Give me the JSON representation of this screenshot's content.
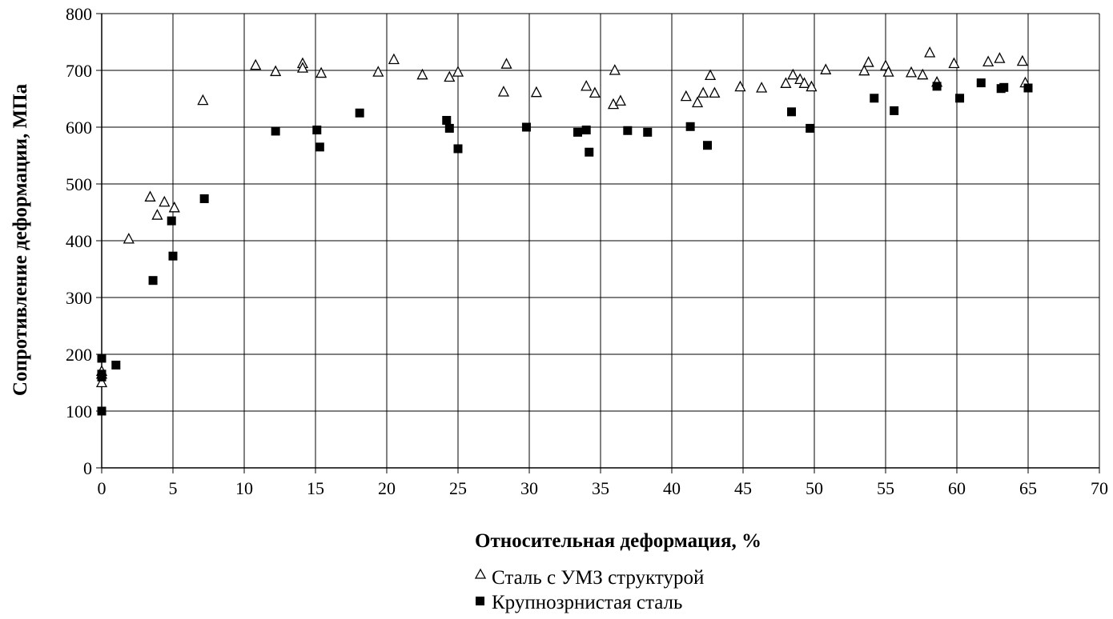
{
  "chart_data": {
    "type": "scatter",
    "title": "",
    "xlabel": "Относительная  деформация, %",
    "ylabel": "Сопротивление деформации, МПа",
    "xlim": [
      0,
      70
    ],
    "ylim": [
      0,
      800
    ],
    "xticks": [
      0,
      5,
      10,
      15,
      20,
      25,
      30,
      35,
      40,
      45,
      50,
      55,
      60,
      65,
      70
    ],
    "yticks": [
      0,
      100,
      200,
      300,
      400,
      500,
      600,
      700,
      800
    ],
    "grid": true,
    "legend_position": "bottom-center",
    "series": [
      {
        "name": "Сталь с УМЗ структурой",
        "marker": "open-triangle",
        "color": "#000000",
        "points": [
          [
            0,
            150
          ],
          [
            0,
            165
          ],
          [
            0,
            170
          ],
          [
            1.9,
            403
          ],
          [
            3.4,
            477
          ],
          [
            3.9,
            445
          ],
          [
            4.4,
            468
          ],
          [
            5.1,
            458
          ],
          [
            7.1,
            647
          ],
          [
            10.8,
            709
          ],
          [
            12.2,
            698
          ],
          [
            14.1,
            712
          ],
          [
            14.1,
            704
          ],
          [
            15.4,
            695
          ],
          [
            19.4,
            697
          ],
          [
            20.5,
            719
          ],
          [
            22.5,
            692
          ],
          [
            24.4,
            688
          ],
          [
            25,
            697
          ],
          [
            28.2,
            662
          ],
          [
            28.4,
            711
          ],
          [
            30.5,
            661
          ],
          [
            34,
            672
          ],
          [
            34.6,
            660
          ],
          [
            35.9,
            640
          ],
          [
            36,
            700
          ],
          [
            36.4,
            646
          ],
          [
            41,
            654
          ],
          [
            41.8,
            643
          ],
          [
            42.2,
            660
          ],
          [
            42.7,
            691
          ],
          [
            43,
            660
          ],
          [
            44.8,
            671
          ],
          [
            46.3,
            669
          ],
          [
            48,
            677
          ],
          [
            48.5,
            692
          ],
          [
            49,
            684
          ],
          [
            49.3,
            677
          ],
          [
            49.8,
            671
          ],
          [
            50.8,
            701
          ],
          [
            53.5,
            699
          ],
          [
            53.8,
            714
          ],
          [
            55,
            708
          ],
          [
            55.2,
            697
          ],
          [
            56.8,
            696
          ],
          [
            57.6,
            692
          ],
          [
            58.1,
            731
          ],
          [
            58.6,
            679
          ],
          [
            59.8,
            712
          ],
          [
            62.2,
            715
          ],
          [
            63,
            721
          ],
          [
            64.6,
            716
          ],
          [
            64.8,
            678
          ]
        ]
      },
      {
        "name": "Крупнозрнистая сталь",
        "marker": "filled-square",
        "color": "#000000",
        "points": [
          [
            0,
            100
          ],
          [
            0,
            160
          ],
          [
            0,
            165
          ],
          [
            0,
            193
          ],
          [
            1,
            181
          ],
          [
            3.6,
            330
          ],
          [
            4.9,
            435
          ],
          [
            5,
            373
          ],
          [
            7.2,
            474
          ],
          [
            12.2,
            593
          ],
          [
            15.1,
            595
          ],
          [
            15.3,
            565
          ],
          [
            18.1,
            625
          ],
          [
            24.2,
            612
          ],
          [
            24.4,
            598
          ],
          [
            25,
            562
          ],
          [
            29.8,
            600
          ],
          [
            33.4,
            591
          ],
          [
            34,
            595
          ],
          [
            34.2,
            556
          ],
          [
            36.9,
            594
          ],
          [
            38.3,
            591
          ],
          [
            41.3,
            601
          ],
          [
            42.5,
            568
          ],
          [
            48.4,
            627
          ],
          [
            49.7,
            598
          ],
          [
            54.2,
            651
          ],
          [
            55.6,
            629
          ],
          [
            58.6,
            672
          ],
          [
            60.2,
            651
          ],
          [
            61.7,
            678
          ],
          [
            63.1,
            668
          ],
          [
            63.3,
            670
          ],
          [
            65,
            669
          ]
        ]
      }
    ]
  }
}
